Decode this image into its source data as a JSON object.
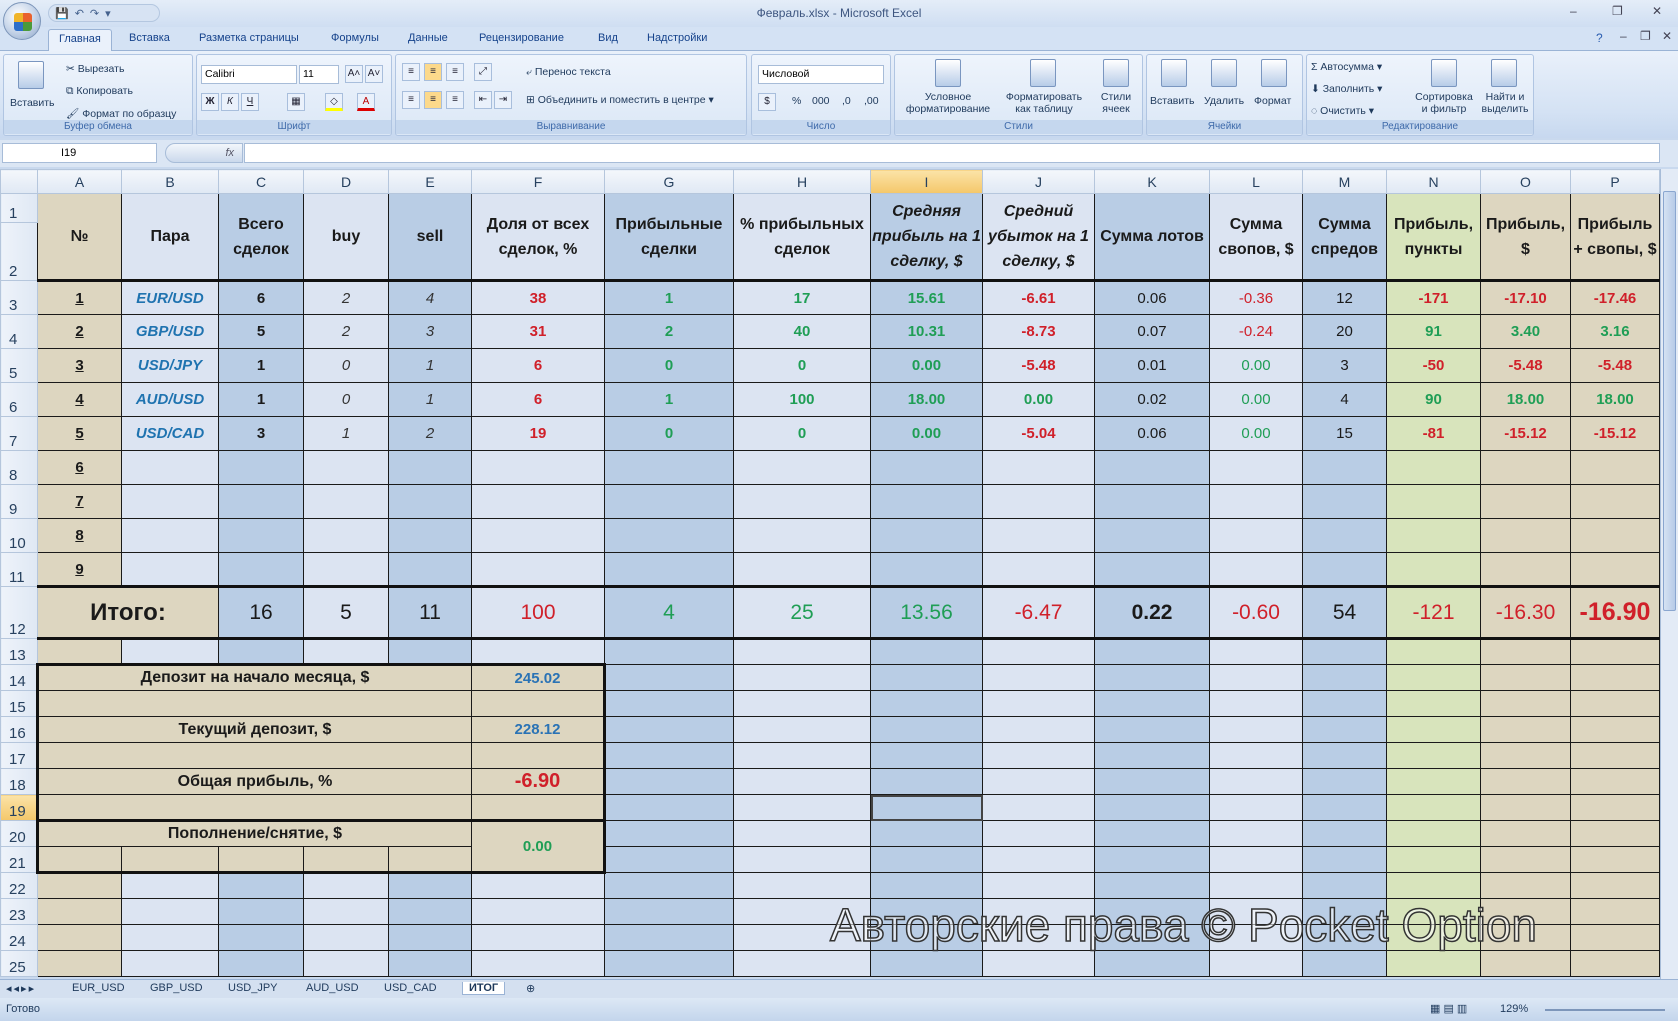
{
  "window": {
    "title": "Февраль.xlsx - Microsoft Excel",
    "minimize": "–",
    "restore": "❐",
    "close": "✕"
  },
  "quick_access": {
    "save": "💾",
    "undo": "↶",
    "redo": "↷",
    "more": "▾"
  },
  "ribbon_tabs": [
    "Главная",
    "Вставка",
    "Разметка страницы",
    "Формулы",
    "Данные",
    "Рецензирование",
    "Вид",
    "Надстройки"
  ],
  "ribbon": {
    "clipboard": {
      "label": "Буфер обмена",
      "paste": "Вставить",
      "cut": "Вырезать",
      "copy": "Копировать",
      "format_painter": "Формат по образцу"
    },
    "font": {
      "label": "Шрифт",
      "font_name": "Calibri",
      "font_size": "11",
      "bold": "Ж",
      "italic": "К",
      "underline": "Ч",
      "grow": "A˄",
      "shrink": "A˅"
    },
    "alignment": {
      "label": "Выравнивание",
      "wrap": "Перенос текста",
      "merge": "Объединить и поместить в центре"
    },
    "number": {
      "label": "Число",
      "format": "Числовой",
      "percent": "%",
      "thousands": "000",
      "inc_dec": ",0",
      "dec_dec": ",00"
    },
    "styles": {
      "label": "Стили",
      "conditional": "Условное форматирование",
      "as_table": "Форматировать как таблицу",
      "cell_styles": "Стили ячеек"
    },
    "cells": {
      "label": "Ячейки",
      "insert": "Вставить",
      "delete": "Удалить",
      "format": "Формат"
    },
    "editing": {
      "label": "Редактирование",
      "autosum": "Автосумма",
      "fill": "Заполнить",
      "clear": "Очистить",
      "sort": "Сортировка и фильтр",
      "find": "Найти и выделить"
    }
  },
  "formula_bar": {
    "name_box": "I19",
    "fx": "fx",
    "value": ""
  },
  "selected_cell": "I19",
  "columns": [
    "A",
    "B",
    "C",
    "D",
    "E",
    "F",
    "G",
    "H",
    "I",
    "J",
    "K",
    "L",
    "M",
    "N",
    "O",
    "P"
  ],
  "headers": [
    "№",
    "Пара",
    "Всего сделок",
    "buy",
    "sell",
    "Доля от всех сделок, %",
    "Прибыльные сделки",
    "% прибыльных сделок",
    "Средняя прибыль на 1 сделку, $",
    "Средний убыток на 1 сделку, $",
    "Сумма лотов",
    "Сумма свопов, $",
    "Сумма спредов",
    "Прибыль, пункты",
    "Прибыль, $",
    "Прибыль + свопы, $"
  ],
  "rows": [
    [
      "1",
      "EUR/USD",
      "6",
      "2",
      "4",
      "38",
      "1",
      "17",
      "15.61",
      "-6.61",
      "0.06",
      "-0.36",
      "12",
      "-171",
      "-17.10",
      "-17.46"
    ],
    [
      "2",
      "GBP/USD",
      "5",
      "2",
      "3",
      "31",
      "2",
      "40",
      "10.31",
      "-8.73",
      "0.07",
      "-0.24",
      "20",
      "91",
      "3.40",
      "3.16"
    ],
    [
      "3",
      "USD/JPY",
      "1",
      "0",
      "1",
      "6",
      "0",
      "0",
      "0.00",
      "-5.48",
      "0.01",
      "0.00",
      "3",
      "-50",
      "-5.48",
      "-5.48"
    ],
    [
      "4",
      "AUD/USD",
      "1",
      "0",
      "1",
      "6",
      "1",
      "100",
      "18.00",
      "0.00",
      "0.02",
      "0.00",
      "4",
      "90",
      "18.00",
      "18.00"
    ],
    [
      "5",
      "USD/CAD",
      "3",
      "1",
      "2",
      "19",
      "0",
      "0",
      "0.00",
      "-5.04",
      "0.06",
      "0.00",
      "15",
      "-81",
      "-15.12",
      "-15.12"
    ],
    [
      "6"
    ],
    [
      "7"
    ],
    [
      "8"
    ],
    [
      "9"
    ]
  ],
  "totals": {
    "label": "Итого:",
    "values": [
      "16",
      "5",
      "11",
      "100",
      "4",
      "25",
      "13.56",
      "-6.47",
      "0.22",
      "-0.60",
      "54",
      "-121",
      "-16.30",
      "-16.90"
    ]
  },
  "summary": [
    {
      "label": "Депозит на начало месяца, $",
      "value": "245.02"
    },
    {
      "label": "Текущий депозит, $",
      "value": "228.12"
    },
    {
      "label": "Общая прибыль, %",
      "value": "-6.90"
    },
    {
      "label": "Пополнение/снятие, $",
      "value": "0.00"
    }
  ],
  "sheet_tabs": [
    "EUR_USD",
    "GBP_USD",
    "USD_JPY",
    "AUD_USD",
    "USD_CAD",
    "ИТОГ"
  ],
  "active_sheet": "ИТОГ",
  "status": {
    "text": "Готово",
    "zoom": "129%"
  },
  "watermark": "Авторские права © Pocket Option",
  "colors": {
    "red": "#d0202a",
    "green": "#1f9e55",
    "pair_blue": "#1f73b0",
    "tan": "#ddd6c0",
    "light_blue": "#dce4f2",
    "mid_blue": "#b9cde5",
    "olive": "#d8e4bc"
  }
}
